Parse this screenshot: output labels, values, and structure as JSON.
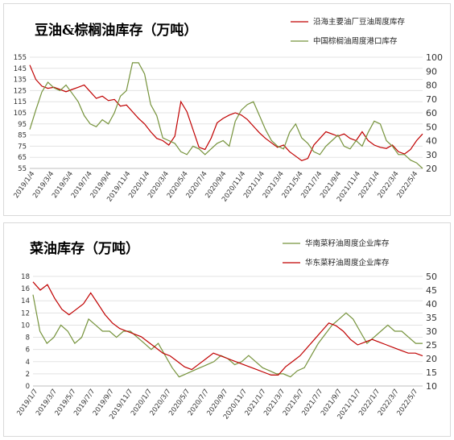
{
  "colors": {
    "red": "#c00000",
    "green": "#76933c"
  },
  "chart_data": [
    {
      "type": "line",
      "title": "豆油&棕榈油库存（万吨）",
      "x_labels": [
        "2019/1/4",
        "2019/3/4",
        "2019/5/4",
        "2019/7/4",
        "2019/9/4",
        "2019/11/4",
        "2020/1/4",
        "2020/3/4",
        "2020/5/4",
        "2020/7/4",
        "2020/9/4",
        "2020/11/4",
        "2021/1/4",
        "2021/3/4",
        "2021/5/4",
        "2021/7/4",
        "2021/9/4",
        "2021/11/4",
        "2022/1/4",
        "2022/3/4",
        "2022/5/4"
      ],
      "y_left": {
        "min": 55,
        "max": 155,
        "ticks": [
          55,
          65,
          75,
          85,
          95,
          105,
          115,
          125,
          135,
          145,
          155
        ]
      },
      "y_right": {
        "min": 20,
        "max": 100,
        "ticks": [
          20,
          30,
          40,
          50,
          60,
          70,
          80,
          90,
          100
        ]
      },
      "series": [
        {
          "name": "沿海主要油厂豆油周度库存",
          "axis": "left",
          "color": "#c00000",
          "values": [
            148,
            135,
            129,
            127,
            128,
            126,
            124,
            126,
            128,
            130,
            124,
            118,
            120,
            116,
            117,
            111,
            112,
            106,
            100,
            95,
            88,
            82,
            80,
            76,
            84,
            115,
            106,
            90,
            74,
            72,
            82,
            96,
            100,
            103,
            105,
            103,
            99,
            93,
            87,
            82,
            78,
            74,
            76,
            70,
            66,
            62,
            64,
            76,
            82,
            88,
            86,
            84,
            86,
            82,
            80,
            88,
            80,
            76,
            74,
            73,
            76,
            70,
            68,
            72,
            80,
            86
          ]
        },
        {
          "name": "中国棕榈油周度港口库存",
          "axis": "right",
          "color": "#76933c",
          "values": [
            48,
            62,
            75,
            82,
            78,
            76,
            80,
            74,
            68,
            58,
            52,
            50,
            55,
            52,
            60,
            72,
            76,
            96,
            96,
            88,
            66,
            58,
            42,
            40,
            38,
            32,
            30,
            36,
            34,
            30,
            34,
            38,
            40,
            36,
            54,
            62,
            66,
            68,
            58,
            48,
            40,
            36,
            34,
            46,
            52,
            42,
            38,
            32,
            30,
            36,
            40,
            44,
            36,
            34,
            40,
            36,
            46,
            54,
            52,
            40,
            36,
            30,
            30,
            26,
            24,
            20
          ]
        }
      ]
    },
    {
      "type": "line",
      "title": "菜油库存（万吨）",
      "x_labels": [
        "2019/1/7",
        "2019/3/7",
        "2019/5/7",
        "2019/7/7",
        "2019/9/7",
        "2019/11/7",
        "2020/1/7",
        "2020/3/7",
        "2020/5/7",
        "2020/7/7",
        "2020/9/7",
        "2020/11/7",
        "2021/1/7",
        "2021/3/7",
        "2021/5/7",
        "2021/7/7",
        "2021/9/7",
        "2021/11/7",
        "2022/1/7",
        "2022/3/7",
        "2022/5/7"
      ],
      "y_left": {
        "min": 0,
        "max": 18,
        "ticks": [
          0,
          2,
          4,
          6,
          8,
          10,
          12,
          14,
          16,
          18
        ]
      },
      "y_right": {
        "min": 10,
        "max": 50,
        "ticks": [
          10,
          15,
          20,
          25,
          30,
          35,
          40,
          45,
          50
        ]
      },
      "series": [
        {
          "name": "华南菜籽油周度企业库存",
          "axis": "left",
          "color": "#76933c",
          "values": [
            15,
            9,
            7,
            8,
            10,
            9,
            7,
            8,
            11,
            10,
            9,
            9,
            8,
            9,
            9,
            8,
            7,
            6,
            7,
            5,
            3,
            1.5,
            2,
            2.5,
            3,
            3.5,
            4,
            5,
            4.5,
            3.5,
            4,
            5,
            4,
            3,
            2.5,
            2,
            2,
            1.5,
            2.5,
            3,
            5,
            7,
            8.5,
            10,
            11,
            12,
            11,
            9,
            7,
            8,
            9,
            10,
            9,
            9,
            8,
            7,
            7
          ]
        },
        {
          "name": "华东菜籽油周度企业库存",
          "axis": "right",
          "color": "#c00000",
          "values": [
            48,
            45,
            47,
            42,
            38,
            36,
            38,
            40,
            44,
            40,
            36,
            33,
            31,
            30,
            29,
            28,
            26,
            24,
            22,
            21,
            19,
            17,
            16,
            18,
            20,
            22,
            21,
            20,
            19,
            18,
            17,
            16,
            15,
            14,
            14,
            17,
            19,
            21,
            24,
            27,
            30,
            33,
            32,
            30,
            27,
            25,
            26,
            27,
            26,
            25,
            24,
            23,
            22,
            22,
            21
          ]
        }
      ]
    }
  ]
}
